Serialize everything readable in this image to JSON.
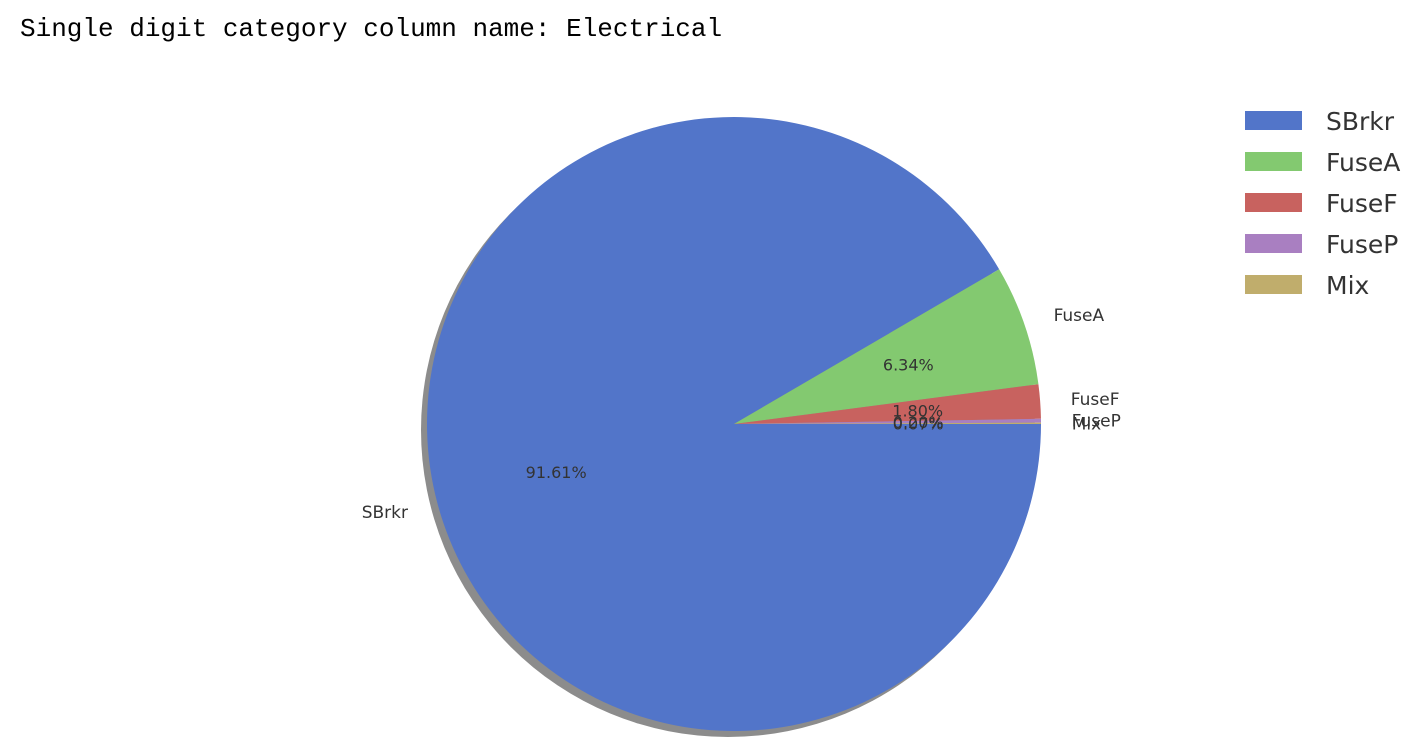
{
  "heading": "Single digit category column name: Electrical",
  "chart_data": {
    "type": "pie",
    "categories": [
      "SBrkr",
      "FuseA",
      "FuseF",
      "FuseP",
      "Mix"
    ],
    "values": [
      91.61,
      6.34,
      1.8,
      0.2,
      0.07
    ],
    "pct_labels": [
      "91.61%",
      "6.34%",
      "1.80%",
      "0.20%",
      "0.07%"
    ],
    "colors": [
      "#5275c9",
      "#83c970",
      "#c8625f",
      "#a97fc1",
      "#c0ad6c"
    ],
    "shadow": true,
    "legend_position": "top-right"
  }
}
